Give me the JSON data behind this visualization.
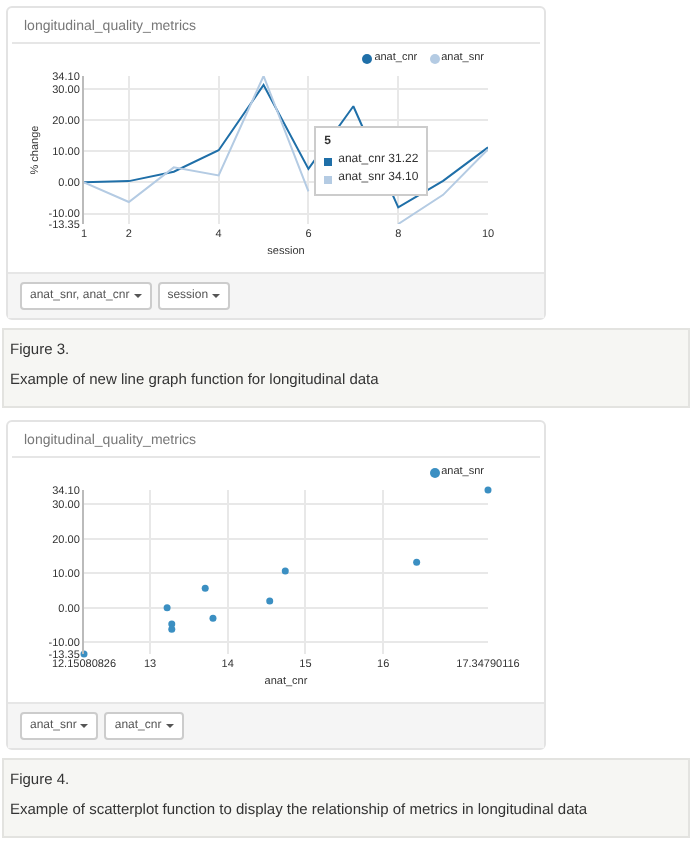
{
  "chart_data": [
    {
      "type": "line",
      "title": "longitudinal_quality_metrics",
      "xlabel": "session",
      "ylabel": "% change",
      "x": [
        1,
        2,
        3,
        4,
        5,
        6,
        7,
        8,
        9,
        10
      ],
      "series": [
        {
          "name": "anat_cnr",
          "color": "#1f6fa8",
          "values": [
            0,
            0.4,
            3.4,
            10.3,
            31.22,
            4.3,
            24.4,
            -8,
            0.5,
            11.2
          ]
        },
        {
          "name": "anat_snr",
          "color": "#b4cbe3",
          "values": [
            0,
            -6.3,
            4.8,
            2.2,
            34.1,
            -2.9,
            null,
            -13.35,
            -4,
            10.6
          ]
        }
      ],
      "xlim": [
        1,
        10
      ],
      "xticks": [
        1,
        2,
        4,
        6,
        8,
        10
      ],
      "ylim": [
        -13.35,
        34.1
      ],
      "yticks": [
        {
          "value": -13.35,
          "label": "-13.35"
        },
        {
          "value": -10,
          "label": "-10.00"
        },
        {
          "value": 0,
          "label": "0.00"
        },
        {
          "value": 10,
          "label": "10.00"
        },
        {
          "value": 20,
          "label": "20.00"
        },
        {
          "value": 30,
          "label": "30.00"
        },
        {
          "value": 34.1,
          "label": "34.10"
        }
      ],
      "grid": true,
      "legend": "top right",
      "marker": "none",
      "line_style": "solid",
      "annotations": [
        "5",
        "anat_cnr 31.22",
        "anat_snr 34.10",
        "anat_snr, anat_cnr",
        "session",
        "Figure 3.",
        "Example of new line graph function for longitudinal data"
      ]
    },
    {
      "type": "scatter",
      "title": "longitudinal_quality_metrics",
      "xlabel": "anat_cnr",
      "series": [
        {
          "name": "anat_snr",
          "color": "#3b8fc2",
          "x": [
            17.34790116,
            16.43,
            14.74,
            13.71,
            13.22,
            13.28,
            13.28,
            13.81,
            14.54,
            12.15080826
          ],
          "values": [
            34.1,
            13.2,
            10.7,
            5.7,
            0,
            -4.7,
            -6.2,
            -3.0,
            2.0,
            -13.35
          ]
        }
      ],
      "xlim": [
        12.15080826,
        17.34790116
      ],
      "xticks": [
        {
          "value": 12.15080826,
          "label": "12.15080826"
        },
        13,
        14,
        15,
        16,
        {
          "value": 17.34790116,
          "label": "17.34790116"
        }
      ],
      "ylim": [
        -13.35,
        34.1
      ],
      "yticks": [
        {
          "value": -13.35,
          "label": "-13.35"
        },
        {
          "value": -10,
          "label": "-10.00"
        },
        {
          "value": 0,
          "label": "0.00"
        },
        {
          "value": 10,
          "label": "10.00"
        },
        {
          "value": 20,
          "label": "20.00"
        },
        {
          "value": 30,
          "label": "30.00"
        },
        {
          "value": 34.1,
          "label": "34.10"
        }
      ],
      "grid": true,
      "legend": "top right",
      "marker": "circle",
      "annotations": [
        "anat_snr",
        "anat_cnr",
        "Figure 4.",
        "Example of scatterplot function to display the relationship of metrics in longitudinal data"
      ]
    }
  ]
}
